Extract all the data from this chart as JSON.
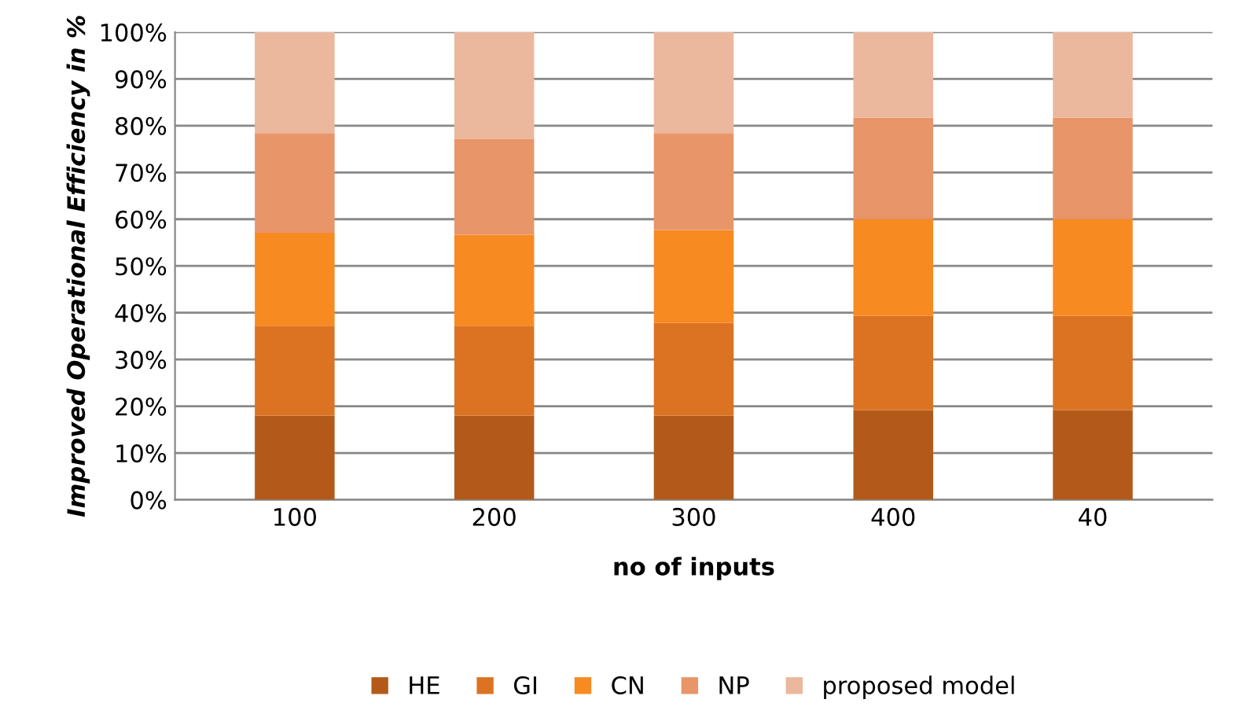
{
  "chart_data": {
    "type": "bar",
    "stacked": true,
    "xlabel": "no of inputs",
    "ylabel": "Improved Operational Efficiency in %",
    "categories": [
      "100",
      "200",
      "300",
      "400",
      "40"
    ],
    "series": [
      {
        "name": "HE",
        "color": "#b35a1a",
        "values": [
          18,
          18,
          18,
          19.2,
          19.2
        ]
      },
      {
        "name": "GI",
        "color": "#dc7322",
        "values": [
          19.2,
          19.2,
          19.8,
          20.1,
          20.1
        ]
      },
      {
        "name": "CN",
        "color": "#f88a22",
        "values": [
          19.9,
          19.5,
          19.9,
          20.7,
          20.7
        ]
      },
      {
        "name": "NP",
        "color": "#e8956a",
        "values": [
          21.3,
          20.5,
          20.7,
          21.7,
          21.7
        ]
      },
      {
        "name": "proposed model",
        "color": "#ebb79d",
        "values": [
          21.6,
          22.8,
          21.6,
          18.3,
          18.3
        ]
      }
    ],
    "ylim": [
      0,
      100
    ],
    "yticks": [
      {
        "value": 0,
        "label": "0%"
      },
      {
        "value": 10,
        "label": "10%"
      },
      {
        "value": 20,
        "label": "20%"
      },
      {
        "value": 30,
        "label": "30%"
      },
      {
        "value": 40,
        "label": "40%"
      },
      {
        "value": 50,
        "label": "50%"
      },
      {
        "value": 60,
        "label": "60%"
      },
      {
        "value": 70,
        "label": "70%"
      },
      {
        "value": 80,
        "label": "80%"
      },
      {
        "value": 90,
        "label": "90%"
      },
      {
        "value": 100,
        "label": "100%"
      }
    ],
    "grid": "y",
    "legend": "bottom"
  }
}
